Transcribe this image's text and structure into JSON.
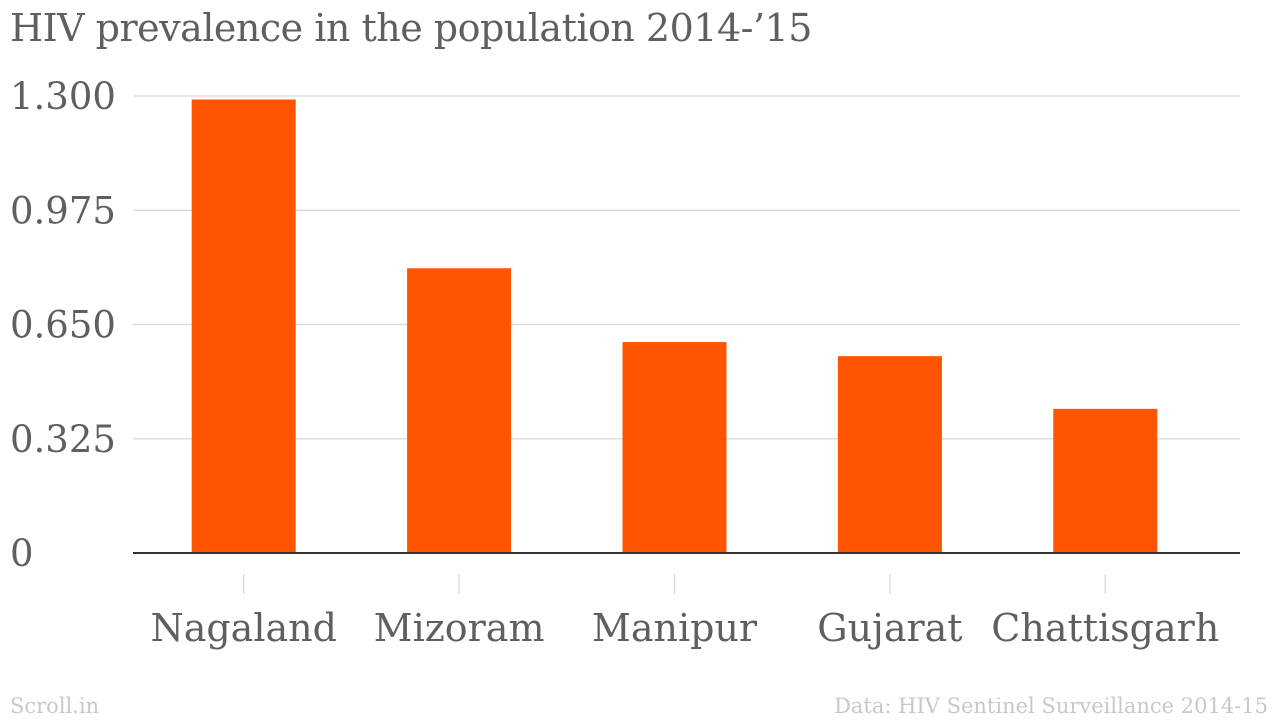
{
  "chart_data": {
    "type": "bar",
    "title": "HIV prevalence in the population 2014-’15",
    "categories": [
      "Nagaland",
      "Mizoram",
      "Manipur",
      "Gujarat",
      "Chattisgarh"
    ],
    "values": [
      1.29,
      0.81,
      0.6,
      0.56,
      0.41
    ],
    "yticks": [
      "0",
      "0.325",
      "0.650",
      "0.975",
      "1.300"
    ],
    "ylim": [
      0,
      1.3
    ],
    "xlabel": "",
    "ylabel": "",
    "grid": true,
    "bar_color": "#ff5400",
    "gridline_color": "#dddddd",
    "axis_color": "#333333",
    "text_color": "#5f5f5f"
  },
  "footer": {
    "brand": "Scroll.in",
    "source": "Data: HIV Sentinel Surveillance 2014-15"
  }
}
